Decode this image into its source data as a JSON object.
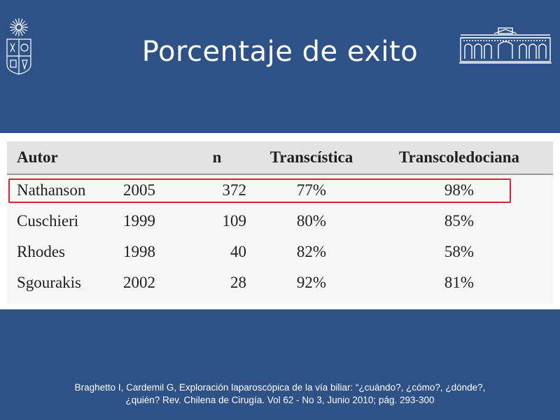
{
  "slide": {
    "title": "Porcentaje de exito",
    "colors": {
      "background": "#2e5287",
      "highlight": "#d22630",
      "text": "#ffffff"
    }
  },
  "logos": {
    "left": "university-crest-icon",
    "right": "building-facade-icon"
  },
  "table": {
    "headers": [
      "Autor",
      "",
      "n",
      "Transcística",
      "Transcoledociana"
    ],
    "rows": [
      [
        "Nathanson",
        "2005",
        "372",
        "77%",
        "98%"
      ],
      [
        "Cuschieri",
        "1999",
        "109",
        "80%",
        "85%"
      ],
      [
        "Rhodes",
        "1998",
        "40",
        "82%",
        "58%"
      ],
      [
        "Sgourakis",
        "2002",
        "28",
        "92%",
        "81%"
      ]
    ],
    "highlighted_row": 0
  },
  "citation": {
    "line1": "Braghetto I, Cardemil G, Exploración laparoscópica de la vía biliar: “¿cuándo?, ¿cómo?, ¿dónde?,",
    "line2": "¿quién? Rev. Chilena de Cirugía. Vol 62 - No 3, Junio 2010; pág. 293-300"
  }
}
